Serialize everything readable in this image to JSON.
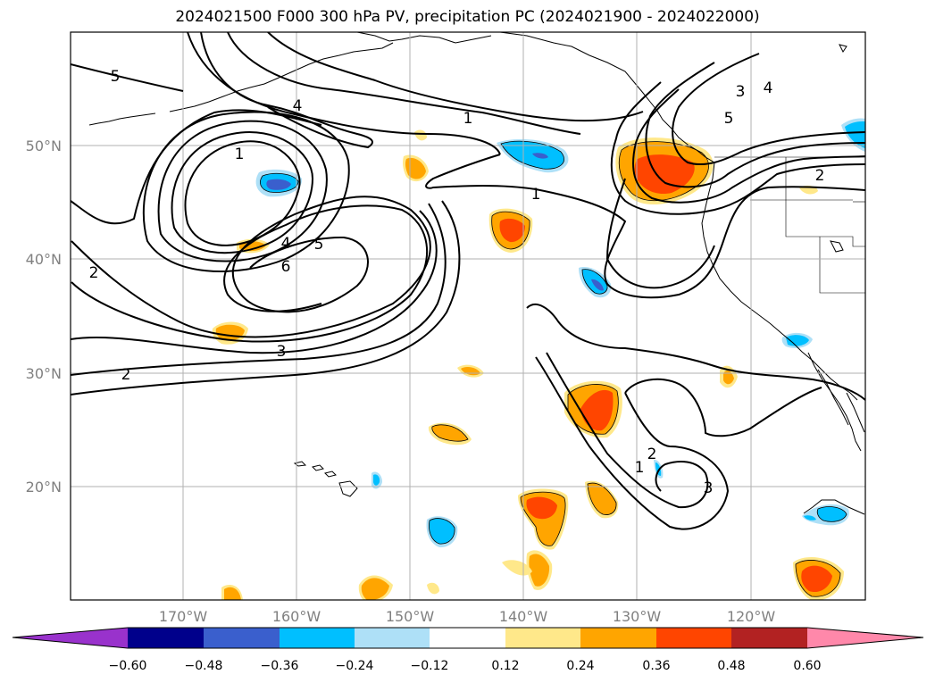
{
  "title": "2024021500 F000 300 hPa PV, precipitation PC (2024021900 - 2024022000)",
  "lon_labels": [
    "170°W",
    "160°W",
    "150°W",
    "140°W",
    "130°W",
    "120°W"
  ],
  "lat_labels": [
    "50°N",
    "40°N",
    "30°N",
    "20°N"
  ],
  "colorbar": {
    "labels": [
      "−0.60",
      "−0.48",
      "−0.36",
      "−0.24",
      "−0.12",
      "0.12",
      "0.24",
      "0.36",
      "0.48",
      "0.60"
    ],
    "colors": [
      "#9932cc",
      "#00008b",
      "#3a5fcd",
      "#00bfff",
      "#aee0f7",
      "#ffffff",
      "#ffe88a",
      "#ffa500",
      "#ff4500",
      "#b22222",
      "#ff88aa"
    ]
  },
  "pv_contour_labels": [
    "5",
    "4",
    "1",
    "1",
    "4",
    "5",
    "6",
    "3",
    "2",
    "2",
    "1",
    "3",
    "4",
    "5",
    "2",
    "2",
    "1",
    "3"
  ],
  "colors": {
    "neg_strong": "#3a5fcd",
    "neg_mid": "#00bfff",
    "neg_weak": "#aee0f7",
    "pos_weak": "#ffe88a",
    "pos_mid": "#ffa500",
    "pos_strong": "#ff4500",
    "grid": "#b0b0b0",
    "axis_label": "#808080"
  }
}
